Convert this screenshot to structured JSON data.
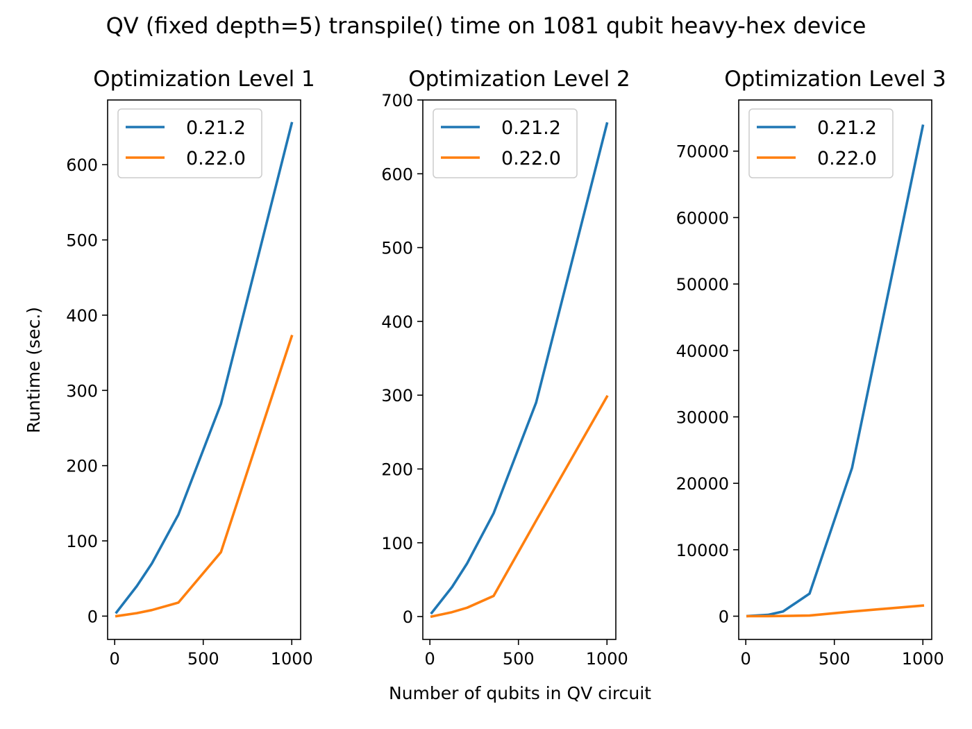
{
  "figure": {
    "title": "QV (fixed depth=5) transpile() time on 1081 qubit heavy-hex device",
    "xlabel": "Number of qubits in QV circuit",
    "ylabel": "Runtime (sec.)"
  },
  "colors": {
    "series_0": "#1f77b4",
    "series_1": "#ff7f0e"
  },
  "chart_data": [
    {
      "type": "line",
      "title": "Optimization Level 1",
      "xlim": [
        -40,
        1050
      ],
      "ylim": [
        -31,
        686
      ],
      "xticks": [
        0,
        500,
        1000
      ],
      "xtick_labels": [
        "0",
        "500",
        "1000"
      ],
      "yticks": [
        0,
        100,
        200,
        300,
        400,
        500,
        600
      ],
      "ytick_labels": [
        "0",
        "100",
        "200",
        "300",
        "400",
        "500",
        "600"
      ],
      "legend": "upper-left",
      "series": [
        {
          "name": "0.21.2",
          "x": [
            10,
            125,
            210,
            360,
            600,
            1000
          ],
          "y": [
            5,
            40,
            70,
            135,
            282,
            655
          ]
        },
        {
          "name": "0.22.0",
          "x": [
            10,
            125,
            210,
            360,
            600,
            1000
          ],
          "y": [
            0,
            4,
            8,
            18,
            85,
            372
          ]
        }
      ]
    },
    {
      "type": "line",
      "title": "Optimization Level 2",
      "xlim": [
        -40,
        1050
      ],
      "ylim": [
        -31,
        700
      ],
      "xticks": [
        0,
        500,
        1000
      ],
      "xtick_labels": [
        "0",
        "500",
        "1000"
      ],
      "yticks": [
        0,
        100,
        200,
        300,
        400,
        500,
        600,
        700
      ],
      "ytick_labels": [
        "0",
        "100",
        "200",
        "300",
        "400",
        "500",
        "600",
        "700"
      ],
      "legend": "upper-left",
      "series": [
        {
          "name": "0.21.2",
          "x": [
            10,
            125,
            210,
            360,
            600,
            1000
          ],
          "y": [
            5,
            40,
            72,
            140,
            290,
            668
          ]
        },
        {
          "name": "0.22.0",
          "x": [
            10,
            125,
            210,
            360,
            600,
            1000
          ],
          "y": [
            0,
            6,
            12,
            28,
            130,
            298
          ]
        }
      ]
    },
    {
      "type": "line",
      "title": "Optimization Level 3",
      "xlim": [
        -40,
        1050
      ],
      "ylim": [
        -3500,
        77700
      ],
      "xticks": [
        0,
        500,
        1000
      ],
      "xtick_labels": [
        "0",
        "500",
        "1000"
      ],
      "yticks": [
        0,
        10000,
        20000,
        30000,
        40000,
        50000,
        60000,
        70000
      ],
      "ytick_labels": [
        "0",
        "10000",
        "20000",
        "30000",
        "40000",
        "50000",
        "60000",
        "70000"
      ],
      "legend": "upper-left",
      "series": [
        {
          "name": "0.21.2",
          "x": [
            10,
            125,
            210,
            360,
            600,
            1000
          ],
          "y": [
            20,
            200,
            700,
            3400,
            22300,
            73800
          ]
        },
        {
          "name": "0.22.0",
          "x": [
            10,
            125,
            210,
            360,
            600,
            1000
          ],
          "y": [
            0,
            10,
            30,
            100,
            700,
            1600
          ]
        }
      ]
    }
  ]
}
